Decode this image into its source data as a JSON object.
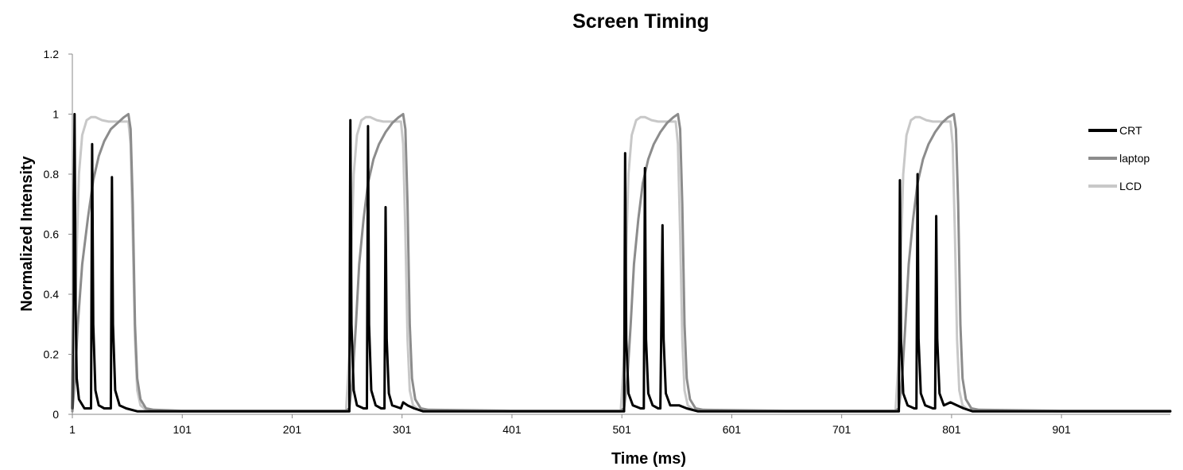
{
  "chart_data": {
    "type": "line",
    "title": "Screen Timing",
    "xlabel": "Time (ms)",
    "ylabel": "Normalized Intensity",
    "xlim": [
      1,
      1000
    ],
    "ylim": [
      0,
      1.2
    ],
    "x_ticks": [
      "1",
      "101",
      "201",
      "301",
      "401",
      "501",
      "601",
      "701",
      "801",
      "901"
    ],
    "y_ticks": [
      "0",
      "0.2",
      "0.4",
      "0.6",
      "0.8",
      "1",
      "1.2"
    ],
    "grid": false,
    "legend_position": "right",
    "series": [
      {
        "name": "CRT",
        "color": "#000000",
        "points": [
          [
            1,
            0.02
          ],
          [
            3,
            1.0
          ],
          [
            4,
            0.35
          ],
          [
            5,
            0.12
          ],
          [
            7,
            0.05
          ],
          [
            12,
            0.02
          ],
          [
            16,
            0.02
          ],
          [
            18,
            0.02
          ],
          [
            19,
            0.9
          ],
          [
            20,
            0.3
          ],
          [
            22,
            0.08
          ],
          [
            25,
            0.03
          ],
          [
            30,
            0.02
          ],
          [
            35,
            0.02
          ],
          [
            36,
            0.02
          ],
          [
            37,
            0.79
          ],
          [
            38,
            0.3
          ],
          [
            40,
            0.08
          ],
          [
            44,
            0.03
          ],
          [
            50,
            0.02
          ],
          [
            60,
            0.01
          ],
          [
            70,
            0.01
          ],
          [
            100,
            0.01
          ],
          [
            150,
            0.01
          ],
          [
            200,
            0.01
          ],
          [
            250,
            0.01
          ],
          [
            253,
            0.01
          ],
          [
            254,
            0.98
          ],
          [
            255,
            0.3
          ],
          [
            257,
            0.08
          ],
          [
            260,
            0.03
          ],
          [
            266,
            0.02
          ],
          [
            269,
            0.02
          ],
          [
            270,
            0.96
          ],
          [
            271,
            0.3
          ],
          [
            273,
            0.08
          ],
          [
            277,
            0.03
          ],
          [
            282,
            0.02
          ],
          [
            285,
            0.02
          ],
          [
            286,
            0.69
          ],
          [
            287,
            0.25
          ],
          [
            289,
            0.07
          ],
          [
            292,
            0.03
          ],
          [
            300,
            0.02
          ],
          [
            302,
            0.04
          ],
          [
            306,
            0.03
          ],
          [
            312,
            0.02
          ],
          [
            320,
            0.01
          ],
          [
            400,
            0.01
          ],
          [
            500,
            0.01
          ],
          [
            503,
            0.01
          ],
          [
            504,
            0.87
          ],
          [
            505,
            0.25
          ],
          [
            507,
            0.07
          ],
          [
            511,
            0.03
          ],
          [
            518,
            0.02
          ],
          [
            521,
            0.02
          ],
          [
            522,
            0.82
          ],
          [
            523,
            0.25
          ],
          [
            525,
            0.07
          ],
          [
            529,
            0.03
          ],
          [
            534,
            0.02
          ],
          [
            536,
            0.02
          ],
          [
            538,
            0.63
          ],
          [
            539,
            0.25
          ],
          [
            541,
            0.07
          ],
          [
            545,
            0.03
          ],
          [
            553,
            0.03
          ],
          [
            560,
            0.02
          ],
          [
            570,
            0.01
          ],
          [
            650,
            0.01
          ],
          [
            750,
            0.01
          ],
          [
            753,
            0.01
          ],
          [
            754,
            0.78
          ],
          [
            755,
            0.25
          ],
          [
            757,
            0.07
          ],
          [
            761,
            0.03
          ],
          [
            767,
            0.02
          ],
          [
            769,
            0.02
          ],
          [
            770,
            0.8
          ],
          [
            771,
            0.25
          ],
          [
            773,
            0.07
          ],
          [
            777,
            0.03
          ],
          [
            784,
            0.02
          ],
          [
            786,
            0.02
          ],
          [
            787,
            0.66
          ],
          [
            788,
            0.25
          ],
          [
            790,
            0.07
          ],
          [
            794,
            0.03
          ],
          [
            800,
            0.04
          ],
          [
            806,
            0.03
          ],
          [
            812,
            0.02
          ],
          [
            820,
            0.01
          ],
          [
            900,
            0.01
          ],
          [
            1000,
            0.01
          ]
        ]
      },
      {
        "name": "laptop",
        "color": "#8c8c8c",
        "points": [
          [
            1,
            0.01
          ],
          [
            3,
            0.1
          ],
          [
            6,
            0.3
          ],
          [
            10,
            0.5
          ],
          [
            15,
            0.65
          ],
          [
            20,
            0.78
          ],
          [
            25,
            0.86
          ],
          [
            30,
            0.91
          ],
          [
            36,
            0.95
          ],
          [
            42,
            0.97
          ],
          [
            48,
            0.99
          ],
          [
            52,
            1.0
          ],
          [
            54,
            0.95
          ],
          [
            56,
            0.7
          ],
          [
            58,
            0.3
          ],
          [
            60,
            0.12
          ],
          [
            63,
            0.05
          ],
          [
            68,
            0.02
          ],
          [
            75,
            0.015
          ],
          [
            100,
            0.012
          ],
          [
            150,
            0.012
          ],
          [
            200,
            0.012
          ],
          [
            250,
            0.012
          ],
          [
            253,
            0.02
          ],
          [
            256,
            0.12
          ],
          [
            259,
            0.3
          ],
          [
            262,
            0.5
          ],
          [
            266,
            0.65
          ],
          [
            270,
            0.77
          ],
          [
            275,
            0.85
          ],
          [
            280,
            0.9
          ],
          [
            286,
            0.94
          ],
          [
            292,
            0.97
          ],
          [
            298,
            0.99
          ],
          [
            302,
            1.0
          ],
          [
            304,
            0.95
          ],
          [
            306,
            0.7
          ],
          [
            308,
            0.3
          ],
          [
            310,
            0.12
          ],
          [
            313,
            0.05
          ],
          [
            318,
            0.02
          ],
          [
            325,
            0.015
          ],
          [
            400,
            0.012
          ],
          [
            500,
            0.012
          ],
          [
            503,
            0.02
          ],
          [
            506,
            0.12
          ],
          [
            509,
            0.3
          ],
          [
            512,
            0.5
          ],
          [
            516,
            0.65
          ],
          [
            520,
            0.77
          ],
          [
            525,
            0.85
          ],
          [
            530,
            0.9
          ],
          [
            536,
            0.94
          ],
          [
            542,
            0.97
          ],
          [
            548,
            0.99
          ],
          [
            552,
            1.0
          ],
          [
            554,
            0.95
          ],
          [
            556,
            0.7
          ],
          [
            558,
            0.3
          ],
          [
            560,
            0.12
          ],
          [
            563,
            0.05
          ],
          [
            568,
            0.02
          ],
          [
            575,
            0.015
          ],
          [
            650,
            0.012
          ],
          [
            750,
            0.012
          ],
          [
            753,
            0.02
          ],
          [
            756,
            0.12
          ],
          [
            759,
            0.3
          ],
          [
            762,
            0.5
          ],
          [
            766,
            0.65
          ],
          [
            770,
            0.77
          ],
          [
            775,
            0.85
          ],
          [
            780,
            0.9
          ],
          [
            786,
            0.94
          ],
          [
            792,
            0.97
          ],
          [
            798,
            0.99
          ],
          [
            803,
            1.0
          ],
          [
            805,
            0.95
          ],
          [
            807,
            0.7
          ],
          [
            809,
            0.3
          ],
          [
            811,
            0.12
          ],
          [
            814,
            0.05
          ],
          [
            819,
            0.02
          ],
          [
            826,
            0.015
          ],
          [
            900,
            0.012
          ],
          [
            1000,
            0.012
          ]
        ]
      },
      {
        "name": "LCD",
        "color": "#c8c8c8",
        "points": [
          [
            1,
            0.01
          ],
          [
            3,
            0.2
          ],
          [
            5,
            0.55
          ],
          [
            7,
            0.8
          ],
          [
            10,
            0.93
          ],
          [
            14,
            0.98
          ],
          [
            18,
            0.99
          ],
          [
            22,
            0.99
          ],
          [
            28,
            0.98
          ],
          [
            34,
            0.975
          ],
          [
            40,
            0.975
          ],
          [
            46,
            0.975
          ],
          [
            52,
            0.975
          ],
          [
            54,
            0.9
          ],
          [
            56,
            0.6
          ],
          [
            58,
            0.25
          ],
          [
            60,
            0.08
          ],
          [
            63,
            0.03
          ],
          [
            68,
            0.015
          ],
          [
            100,
            0.01
          ],
          [
            200,
            0.01
          ],
          [
            250,
            0.01
          ],
          [
            253,
            0.2
          ],
          [
            255,
            0.55
          ],
          [
            257,
            0.8
          ],
          [
            260,
            0.93
          ],
          [
            264,
            0.98
          ],
          [
            268,
            0.99
          ],
          [
            272,
            0.99
          ],
          [
            278,
            0.98
          ],
          [
            284,
            0.975
          ],
          [
            290,
            0.975
          ],
          [
            296,
            0.975
          ],
          [
            300,
            0.975
          ],
          [
            302,
            0.9
          ],
          [
            304,
            0.6
          ],
          [
            306,
            0.25
          ],
          [
            308,
            0.08
          ],
          [
            311,
            0.03
          ],
          [
            316,
            0.015
          ],
          [
            400,
            0.01
          ],
          [
            500,
            0.01
          ],
          [
            503,
            0.2
          ],
          [
            505,
            0.55
          ],
          [
            507,
            0.8
          ],
          [
            510,
            0.93
          ],
          [
            514,
            0.98
          ],
          [
            518,
            0.99
          ],
          [
            522,
            0.99
          ],
          [
            528,
            0.98
          ],
          [
            534,
            0.975
          ],
          [
            540,
            0.975
          ],
          [
            546,
            0.975
          ],
          [
            550,
            0.975
          ],
          [
            552,
            0.9
          ],
          [
            554,
            0.6
          ],
          [
            556,
            0.25
          ],
          [
            558,
            0.08
          ],
          [
            561,
            0.03
          ],
          [
            566,
            0.015
          ],
          [
            650,
            0.01
          ],
          [
            750,
            0.01
          ],
          [
            753,
            0.2
          ],
          [
            755,
            0.55
          ],
          [
            757,
            0.8
          ],
          [
            760,
            0.93
          ],
          [
            764,
            0.98
          ],
          [
            768,
            0.99
          ],
          [
            772,
            0.99
          ],
          [
            778,
            0.98
          ],
          [
            784,
            0.975
          ],
          [
            790,
            0.975
          ],
          [
            796,
            0.975
          ],
          [
            800,
            0.975
          ],
          [
            802,
            0.9
          ],
          [
            804,
            0.6
          ],
          [
            806,
            0.25
          ],
          [
            808,
            0.08
          ],
          [
            811,
            0.03
          ],
          [
            816,
            0.015
          ],
          [
            900,
            0.01
          ],
          [
            1000,
            0.01
          ]
        ]
      }
    ]
  }
}
